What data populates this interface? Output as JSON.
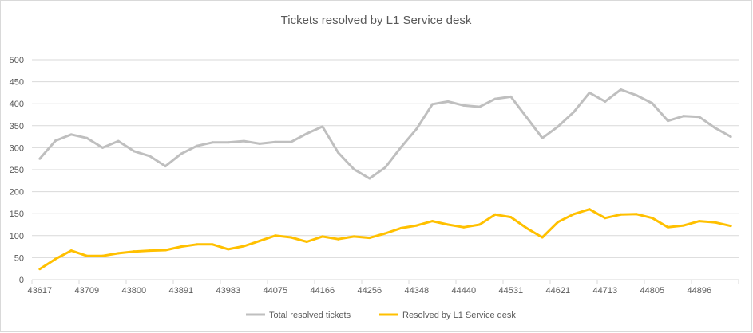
{
  "chart_data": {
    "type": "line",
    "title": "Tickets resolved by L1 Service desk",
    "xlabel": "",
    "ylabel": "",
    "ylim": [
      0,
      500
    ],
    "yticks": [
      0,
      50,
      100,
      150,
      200,
      250,
      300,
      350,
      400,
      450,
      500
    ],
    "grid": true,
    "legend_position": "bottom",
    "x": [
      43617,
      43647,
      43678,
      43709,
      43739,
      43770,
      43800,
      43831,
      43862,
      43891,
      43922,
      43952,
      43983,
      44013,
      44044,
      44075,
      44105,
      44136,
      44166,
      44197,
      44228,
      44256,
      44287,
      44317,
      44348,
      44378,
      44409,
      44440,
      44470,
      44501,
      44531,
      44562,
      44593,
      44621,
      44652,
      44682,
      44713,
      44743,
      44774,
      44805,
      44835,
      44866,
      44896,
      44927,
      44958
    ],
    "xtick_labels": [
      "43617",
      "43709",
      "43800",
      "43891",
      "43983",
      "44075",
      "44166",
      "44256",
      "44348",
      "44440",
      "44531",
      "44621",
      "44713",
      "44805",
      "44896"
    ],
    "series": [
      {
        "name": "Total resolved tickets",
        "color": "#BFBFBF",
        "values": [
          275,
          316,
          330,
          322,
          300,
          315,
          292,
          281,
          258,
          286,
          304,
          312,
          312,
          315,
          309,
          313,
          313,
          332,
          348,
          289,
          251,
          230,
          255,
          301,
          343,
          399,
          405,
          396,
          393,
          411,
          416,
          369,
          322,
          348,
          381,
          425,
          405,
          432,
          419,
          401,
          361,
          372,
          370,
          345,
          325
        ]
      },
      {
        "name": "Resolved by L1 Service desk",
        "color": "#FFC000",
        "values": [
          24,
          47,
          66,
          54,
          54,
          60,
          64,
          66,
          67,
          75,
          80,
          80,
          69,
          76,
          88,
          100,
          96,
          86,
          98,
          92,
          98,
          95,
          105,
          117,
          123,
          133,
          125,
          119,
          125,
          148,
          142,
          117,
          96,
          131,
          149,
          160,
          140,
          148,
          149,
          140,
          119,
          123,
          133,
          130,
          122
        ]
      }
    ]
  }
}
